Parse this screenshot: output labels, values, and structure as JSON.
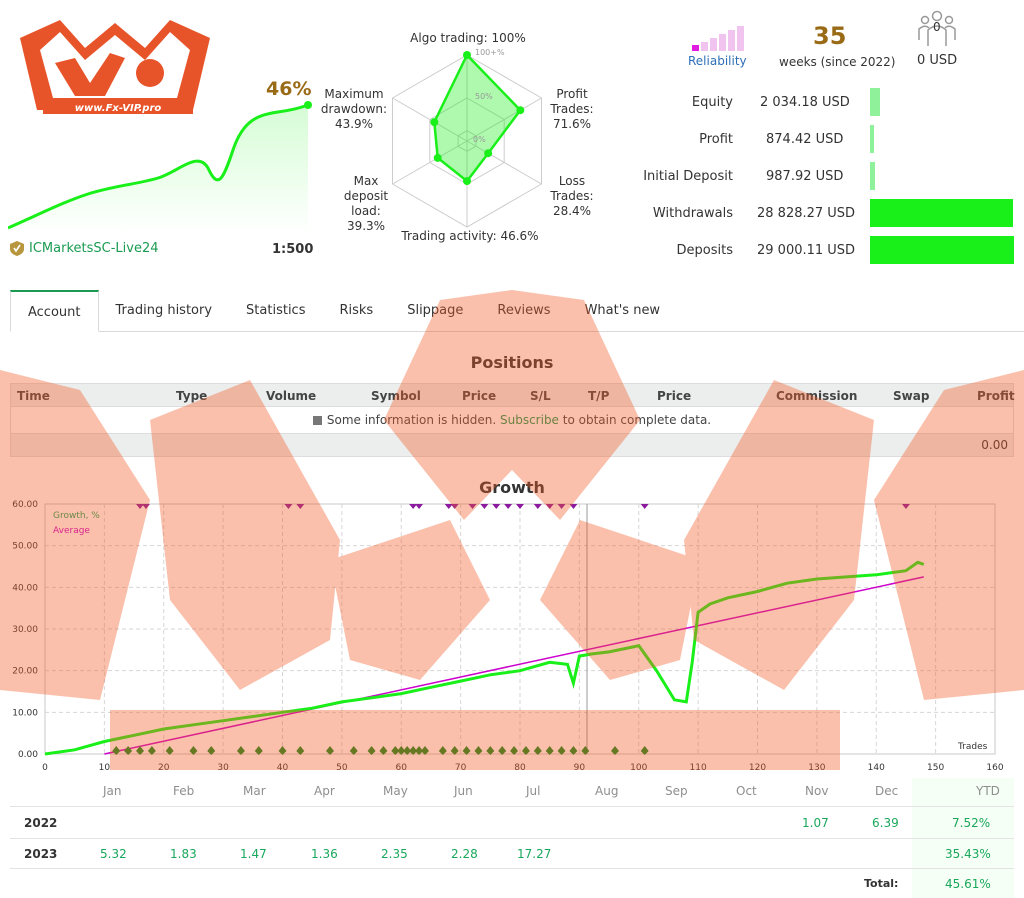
{
  "logo": {
    "text": "www.Fx-VIP.pro"
  },
  "header": {
    "growth_pct": "46%",
    "broker": "ICMarketsSC-Live24",
    "leverage": "1:500"
  },
  "radar": {
    "algo": "Algo trading: 100%",
    "profit_trades": [
      "Profit",
      "Trades:",
      "71.6%"
    ],
    "loss_trades": [
      "Loss",
      "Trades:",
      "28.4%"
    ],
    "trading_activity": "Trading activity: 46.6%",
    "max_deposit_load": [
      "Max",
      "deposit",
      "load:",
      "39.3%"
    ],
    "max_drawdown": [
      "Maximum",
      "drawdown:",
      "43.9%"
    ],
    "scale_labels": [
      "100+%",
      "50%",
      "0%"
    ],
    "values_pct": {
      "algo": 100,
      "profit_trades": 71.6,
      "loss_trades": 28.4,
      "activity": 46.6,
      "deposit_load": 39.3,
      "drawdown": 43.9
    }
  },
  "reliability": {
    "label": "Reliability",
    "level_fraction": 0.2
  },
  "weeks": {
    "value": "35",
    "label": "weeks (since 2022)"
  },
  "subscribers": {
    "count": "0",
    "usd": "0 USD"
  },
  "stats": [
    {
      "label": "Equity",
      "value": "2 034.18 USD",
      "fraction": 0.07
    },
    {
      "label": "Profit",
      "value": "874.42 USD",
      "fraction": 0.03
    },
    {
      "label": "Initial Deposit",
      "value": "987.92 USD",
      "fraction": 0.034
    },
    {
      "label": "Withdrawals",
      "value": "28 828.27 USD",
      "fraction": 0.994
    },
    {
      "label": "Deposits",
      "value": "29 000.11 USD",
      "fraction": 1.0
    }
  ],
  "tabs": [
    "Account",
    "Trading history",
    "Statistics",
    "Risks",
    "Slippage",
    "Reviews",
    "What's new"
  ],
  "positions": {
    "title": "Positions",
    "columns": [
      "Time",
      "Type",
      "Volume",
      "Symbol",
      "Price",
      "S/L",
      "T/P",
      "Price",
      "Commission",
      "Swap",
      "Profit"
    ],
    "info_pre": "Some information is hidden.",
    "info_link": "Subscribe",
    "info_post": "to obtain complete data.",
    "total": "0.00"
  },
  "growth": {
    "title": "Growth",
    "legend_growth": "Growth, %",
    "legend_average": "Average",
    "x_axis_label": "Trades"
  },
  "chart_data": {
    "type": "line",
    "xlim": [
      0,
      160
    ],
    "ylim": [
      0,
      60
    ],
    "x_ticks": [
      0,
      10,
      20,
      30,
      40,
      50,
      60,
      70,
      80,
      90,
      100,
      110,
      120,
      130,
      140,
      150,
      160
    ],
    "y_ticks": [
      "0.00",
      "10.00",
      "20.00",
      "30.00",
      "40.00",
      "50.00",
      "60.00"
    ],
    "months": [
      "Jan",
      "Feb",
      "Mar",
      "Apr",
      "May",
      "Jun",
      "Jul",
      "Aug",
      "Sep",
      "Oct",
      "Nov",
      "Dec"
    ],
    "series": [
      {
        "name": "Growth, %",
        "x": [
          0,
          5,
          10,
          15,
          20,
          25,
          30,
          35,
          40,
          45,
          50,
          55,
          60,
          65,
          70,
          75,
          80,
          85,
          88,
          89,
          90,
          92,
          95,
          100,
          103,
          106,
          108,
          109,
          110,
          112,
          115,
          120,
          125,
          130,
          135,
          140,
          145,
          147,
          148
        ],
        "y": [
          0,
          1,
          3,
          4.5,
          6,
          7,
          8,
          9,
          10,
          11,
          12.5,
          13.5,
          14.5,
          16,
          17.5,
          19,
          20,
          22,
          21.5,
          17,
          23.5,
          24,
          24.5,
          26,
          20,
          13,
          12.5,
          22,
          34,
          36,
          37.5,
          39,
          41,
          42,
          42.5,
          43,
          44,
          46,
          45.5
        ]
      },
      {
        "name": "Average",
        "x": [
          10,
          148
        ],
        "y": [
          0,
          42.5
        ]
      }
    ],
    "top_markers_x": [
      16,
      17,
      41,
      43,
      62,
      63,
      68,
      69,
      72,
      74,
      76,
      78,
      80,
      83,
      85,
      87,
      89,
      101,
      145
    ],
    "bottom_markers_x": [
      12,
      14,
      16,
      18,
      21,
      25,
      28,
      33,
      36,
      40,
      43,
      48,
      52,
      55,
      57,
      59,
      60,
      61,
      62,
      63,
      64,
      67,
      69,
      71,
      73,
      75,
      77,
      79,
      81,
      83,
      85,
      87,
      89,
      91,
      96,
      101
    ]
  },
  "yearly": {
    "ytd_label": "YTD",
    "rows": [
      {
        "year": "2022",
        "values": [
          "",
          "",
          "",
          "",
          "",
          "",
          "",
          "",
          "",
          "",
          "1.07",
          "6.39"
        ],
        "ytd": "7.52%"
      },
      {
        "year": "2023",
        "values": [
          "5.32",
          "1.83",
          "1.47",
          "1.36",
          "2.35",
          "2.28",
          "17.27",
          "",
          "",
          "",
          "",
          ""
        ],
        "ytd": "35.43%"
      }
    ],
    "total_label": "Total:",
    "total_value": "45.61%"
  },
  "colors": {
    "accent": "#1b9b52",
    "growth": "#19ef19",
    "average": "#cc00cc",
    "watermark": "#f25b27",
    "gold": "#9a6b17"
  }
}
